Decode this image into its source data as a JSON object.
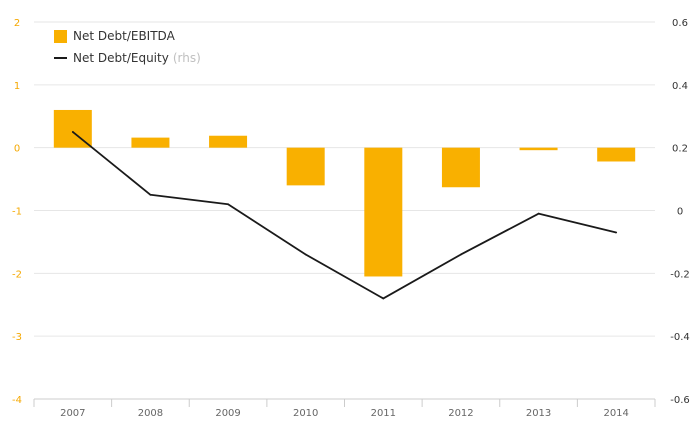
{
  "colors": {
    "bar": "#f9b000",
    "line": "#1a1a1a",
    "grid": "#e6e6e6",
    "left_axis_text": "#f5a800",
    "right_axis_text": "#333333",
    "x_axis_text": "#666666",
    "axis_line": "#cccccc"
  },
  "legend": {
    "placement": "top-left",
    "items": [
      {
        "label": "Net Debt/EBITDA",
        "marker": "bar"
      },
      {
        "label": "Net Debt/Equity",
        "suffix": "(rhs)",
        "marker": "line"
      }
    ]
  },
  "chart_data": {
    "type": "bar",
    "title": "",
    "categories": [
      "2007",
      "2008",
      "2009",
      "2010",
      "2011",
      "2012",
      "2013",
      "2014"
    ],
    "series": [
      {
        "name": "Net Debt/EBITDA",
        "type": "bar",
        "axis": "left",
        "values": [
          0.6,
          0.16,
          0.19,
          -0.6,
          -2.05,
          -0.63,
          -0.04,
          -0.22
        ]
      },
      {
        "name": "Net Debt/Equity",
        "type": "line",
        "axis": "right",
        "values": [
          0.25,
          0.05,
          0.02,
          -0.14,
          -0.28,
          -0.14,
          -0.01,
          -0.07
        ]
      }
    ],
    "y_left": {
      "ticks": [
        "2",
        "1",
        "0",
        "-1",
        "-2",
        "-3",
        "-4"
      ],
      "min": -4,
      "max": 2
    },
    "y_right": {
      "ticks": [
        "0.6",
        "0.4",
        "0.2",
        "0",
        "-0.2",
        "-0.4",
        "-0.6"
      ],
      "min": -0.6,
      "max": 0.6
    },
    "grid": true
  }
}
